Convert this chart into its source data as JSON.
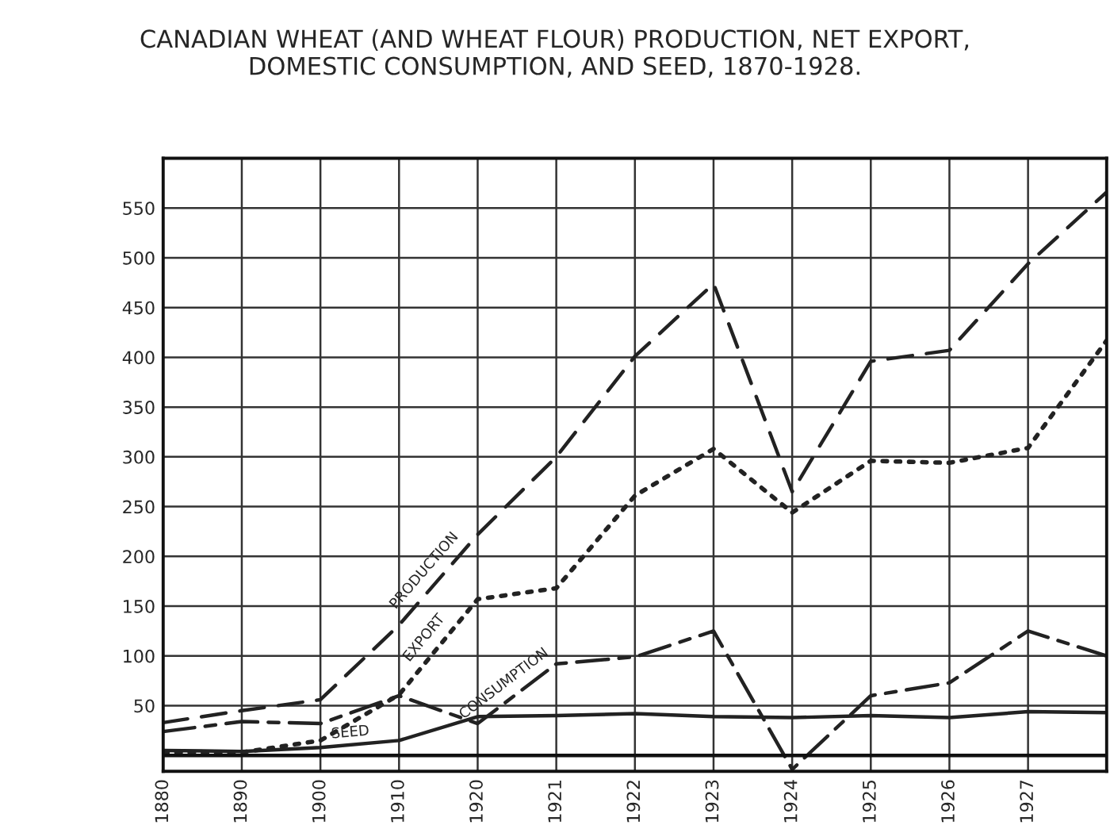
{
  "chart_data": {
    "type": "line",
    "title": "CANADIAN WHEAT (AND WHEAT FLOUR) PRODUCTION, NET EXPORT,\nDOMESTIC CONSUMPTION, AND SEED, 1870-1928.",
    "categories": [
      "1880",
      "1890",
      "1900",
      "1910",
      "1920",
      "1921",
      "1922",
      "1923",
      "1924",
      "1925",
      "1926",
      "1927",
      null
    ],
    "series": [
      {
        "name": "PRODUCTION",
        "color": "#222222",
        "line_style": "dashed",
        "values": [
          33,
          45,
          56,
          131,
          222,
          300,
          401,
          474,
          265,
          396,
          407,
          494,
          566
        ]
      },
      {
        "name": "EXPORT",
        "color": "#222222",
        "line_style": "dotted",
        "values": [
          3,
          3,
          15,
          61,
          157,
          168,
          261,
          308,
          244,
          296,
          294,
          309,
          417
        ]
      },
      {
        "name": "CONSUMPTION",
        "color": "#222222",
        "line_style": "dashdot",
        "values": [
          24,
          34,
          32,
          60,
          32,
          92,
          99,
          125,
          -14,
          60,
          73,
          125,
          100
        ]
      },
      {
        "name": "SEED",
        "color": "#222222",
        "line_style": "solid",
        "values": [
          5,
          4,
          8,
          15,
          39,
          40,
          42,
          39,
          38,
          40,
          38,
          44,
          43
        ]
      }
    ],
    "ylim": [
      -16,
      600
    ],
    "yticks": [
      50,
      100,
      150,
      200,
      250,
      300,
      350,
      400,
      450,
      500,
      550
    ],
    "ref_lines": [
      {
        "axis": "y",
        "value": 0,
        "color": "#111111"
      }
    ],
    "grid": true,
    "legend": false,
    "marker": "none"
  }
}
